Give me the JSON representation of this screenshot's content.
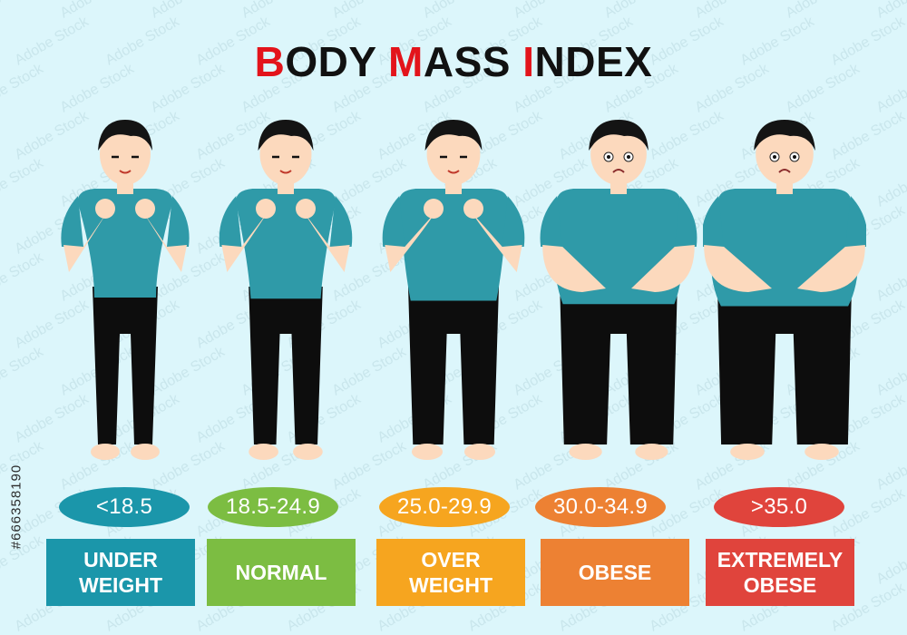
{
  "title": {
    "parts": [
      {
        "text": "B",
        "accent": true
      },
      {
        "text": "ODY ",
        "accent": false
      },
      {
        "text": "M",
        "accent": true
      },
      {
        "text": "ASS ",
        "accent": false
      },
      {
        "text": "I",
        "accent": true
      },
      {
        "text": "NDEX",
        "accent": false
      }
    ]
  },
  "watermark_text": "Adobe Stock",
  "stock_id": "#666358190",
  "colors": {
    "background": "#dcf6fb",
    "accent": "#e3141b",
    "shirt": "#2f9aa8",
    "pants": "#0d0d0d",
    "skin": "#fcd9bd",
    "hair": "#141414"
  },
  "categories": [
    {
      "range": "<18.5",
      "label": "UNDER\nWEIGHT",
      "color": "#1b96aa",
      "figure": "underweight-figure"
    },
    {
      "range": "18.5-24.9",
      "label": "NORMAL",
      "color": "#7cbd42",
      "figure": "normal-figure"
    },
    {
      "range": "25.0-29.9",
      "label": "OVER\nWEIGHT",
      "color": "#f6a51f",
      "figure": "overweight-figure"
    },
    {
      "range": "30.0-34.9",
      "label": "OBESE",
      "color": "#ed8133",
      "figure": "obese-figure"
    },
    {
      "range": ">35.0",
      "label": "EXTREMELY\nOBESE",
      "color": "#e0443c",
      "figure": "extremely-obese-figure"
    }
  ]
}
